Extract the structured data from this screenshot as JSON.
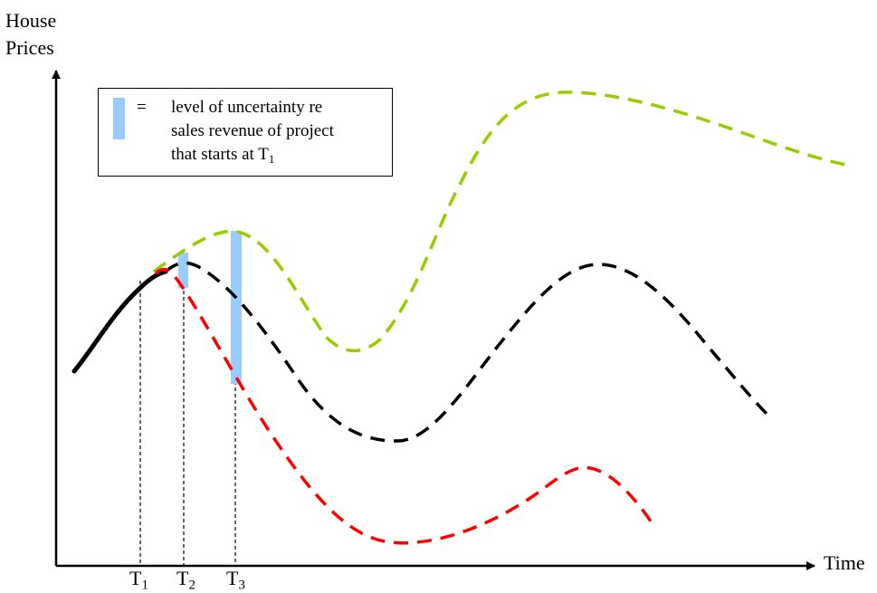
{
  "axes": {
    "y_label_line1": "House",
    "y_label_line2": "Prices",
    "x_label": "Time"
  },
  "time_markers": [
    {
      "base": "T",
      "sub": "1"
    },
    {
      "base": "T",
      "sub": "2"
    },
    {
      "base": "T",
      "sub": "3"
    }
  ],
  "legend": {
    "symbol": "=",
    "line1": "level of uncertainty re",
    "line2": "sales revenue of project",
    "line3_prefix": "that starts at T",
    "line3_sub": "1"
  },
  "colors": {
    "historical": "#000000",
    "upper_scenario": "#99cc00",
    "middle_scenario": "#000000",
    "lower_scenario": "#ff0000",
    "uncertainty_bar": "#99ccff"
  }
}
